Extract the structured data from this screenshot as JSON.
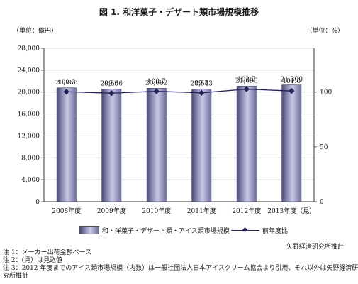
{
  "title": "図 1.  和洋菓子・デザート類市場規模推移",
  "unit_left": "（単位：億円）",
  "unit_right": "（単位：%）",
  "chart_data": {
    "type": "bar",
    "categories": [
      "2008年度",
      "2009年度",
      "2010年度",
      "2011年度",
      "2012年度",
      "2013年度（見）"
    ],
    "series": [
      {
        "name": "和・洋菓子・デザート類・アイス類市場規模",
        "type": "bar",
        "axis": "left",
        "values": [
          20768,
          20556,
          20692,
          20543,
          21096,
          21300
        ],
        "labels": [
          "20,768",
          "20,556",
          "20,692",
          "20,543",
          "21,096",
          "21,300"
        ]
      },
      {
        "name": "前年度比",
        "type": "line",
        "axis": "right",
        "values": [
          100.3,
          99.0,
          100.7,
          99.3,
          102.7,
          101.0
        ],
        "labels": [
          "100.3",
          "99.0",
          "100.7",
          "99.3",
          "102.7",
          "101.0"
        ]
      }
    ],
    "ylim": [
      0,
      28000
    ],
    "yticks": [
      "0",
      "4,000",
      "8,000",
      "12,000",
      "16,000",
      "20,000",
      "24,000",
      "28,000"
    ],
    "y2lim": [
      0,
      140
    ],
    "y2ticks": [
      "0",
      "50",
      "100"
    ],
    "grid": true,
    "legend_position": "bottom"
  },
  "legend": {
    "bar_label": "和・洋菓子・デザート類・アイス類市場規模",
    "line_label": "前年度比"
  },
  "source": "矢野経済研究所推計",
  "notes": [
    "注 1：メーカー出荷金額ベース",
    "注 2：(見）は見込値",
    "注 3：2012 年度までのアイス類市場規模（内数）は一般社団法人日本アイスクリーム協会より引用、それ以外は矢野経済研",
    "究所推計"
  ],
  "colors": {
    "bar_dark": "#4a4a7a",
    "bar_light": "#c9c9e6",
    "line": "#23235a",
    "grid": "#d0d0d0",
    "axis": "#333333"
  }
}
